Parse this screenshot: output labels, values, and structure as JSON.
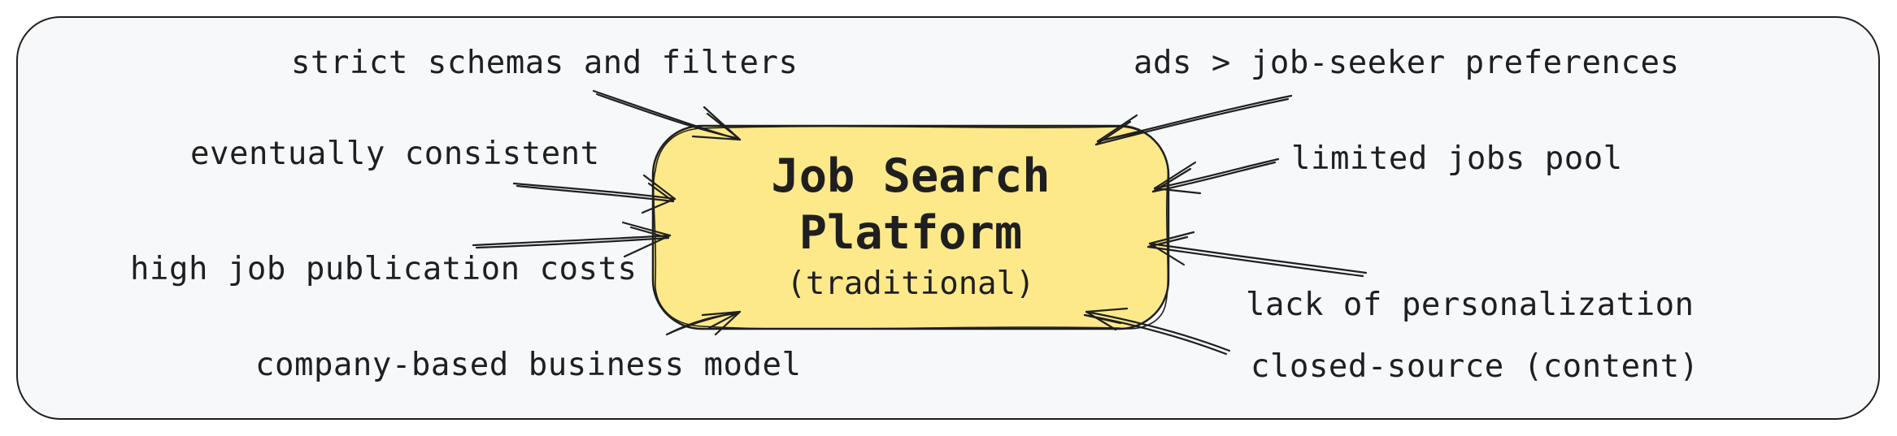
{
  "node": {
    "title_line1": "Job Search",
    "title_line2": "Platform",
    "subtitle": "(traditional)"
  },
  "issues": {
    "strict_schemas": "strict schemas and filters",
    "eventually_consistent": "eventually consistent",
    "publication_costs": "high job publication costs",
    "business_model": "company-based business model",
    "ads_over_preferences": "ads > job-seeker preferences",
    "limited_pool": "limited jobs pool",
    "no_personalization": "lack of personalization",
    "closed_source": "closed-source (content)"
  },
  "colors": {
    "node_fill": "#fde98a",
    "stroke": "#1f1f1f",
    "frame_fill": "#f7f8fa"
  }
}
